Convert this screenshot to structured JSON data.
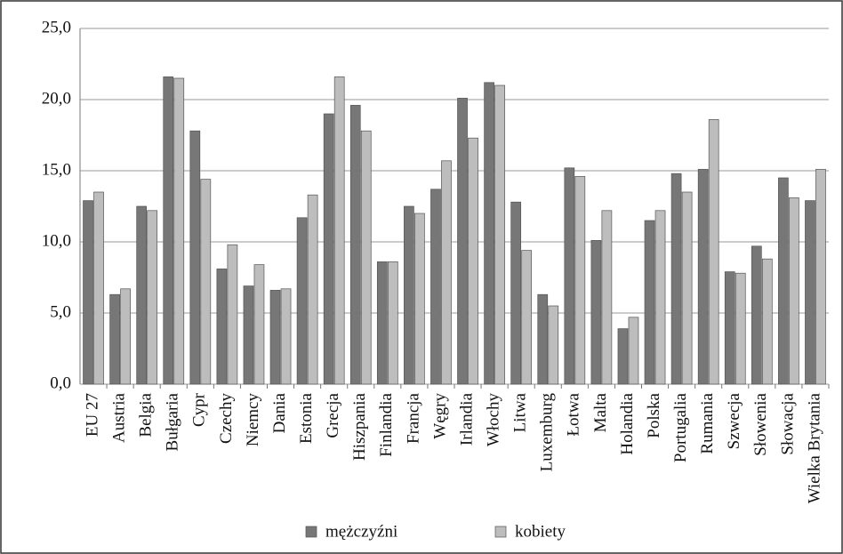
{
  "chart_data": {
    "type": "bar",
    "categories": [
      "EU 27",
      "Austria",
      "Belgia",
      "Bułgaria",
      "Cypr",
      "Czechy",
      "Niemcy",
      "Dania",
      "Estonia",
      "Grecja",
      "Hiszpania",
      "Finlandia",
      "Francja",
      "Węgry",
      "Irlandia",
      "Włochy",
      "Litwa",
      "Luxemburg",
      "Łotwa",
      "Malta",
      "Holandia",
      "Polska",
      "Portugalia",
      "Rumania",
      "Szwecja",
      "Słowenia",
      "Słowacja",
      "Wielka Brytania"
    ],
    "series": [
      {
        "name": "mężczyźni",
        "color": "#777777",
        "values": [
          12.9,
          6.3,
          12.5,
          21.6,
          17.8,
          8.1,
          6.9,
          6.6,
          11.7,
          19.0,
          19.6,
          8.6,
          12.5,
          13.7,
          20.1,
          21.2,
          12.8,
          6.3,
          15.2,
          10.1,
          3.9,
          11.5,
          14.8,
          15.1,
          7.9,
          9.7,
          14.5,
          12.9
        ]
      },
      {
        "name": "kobiety",
        "color": "#bdbdbd",
        "values": [
          13.5,
          6.7,
          12.2,
          21.5,
          14.4,
          9.8,
          8.4,
          6.7,
          13.3,
          21.6,
          17.8,
          8.6,
          12.0,
          15.7,
          17.3,
          21.0,
          9.4,
          5.5,
          14.6,
          12.2,
          4.7,
          12.2,
          13.5,
          18.6,
          7.8,
          8.8,
          13.1,
          15.1
        ]
      }
    ],
    "ylim": [
      0,
      25
    ],
    "yticks": [
      {
        "value": 0,
        "label": "0,0"
      },
      {
        "value": 5,
        "label": "5,0"
      },
      {
        "value": 10,
        "label": "10,0"
      },
      {
        "value": 15,
        "label": "15,0"
      },
      {
        "value": 20,
        "label": "20,0"
      },
      {
        "value": 25,
        "label": "25,0"
      }
    ],
    "grid": true,
    "legend": "bottom"
  }
}
